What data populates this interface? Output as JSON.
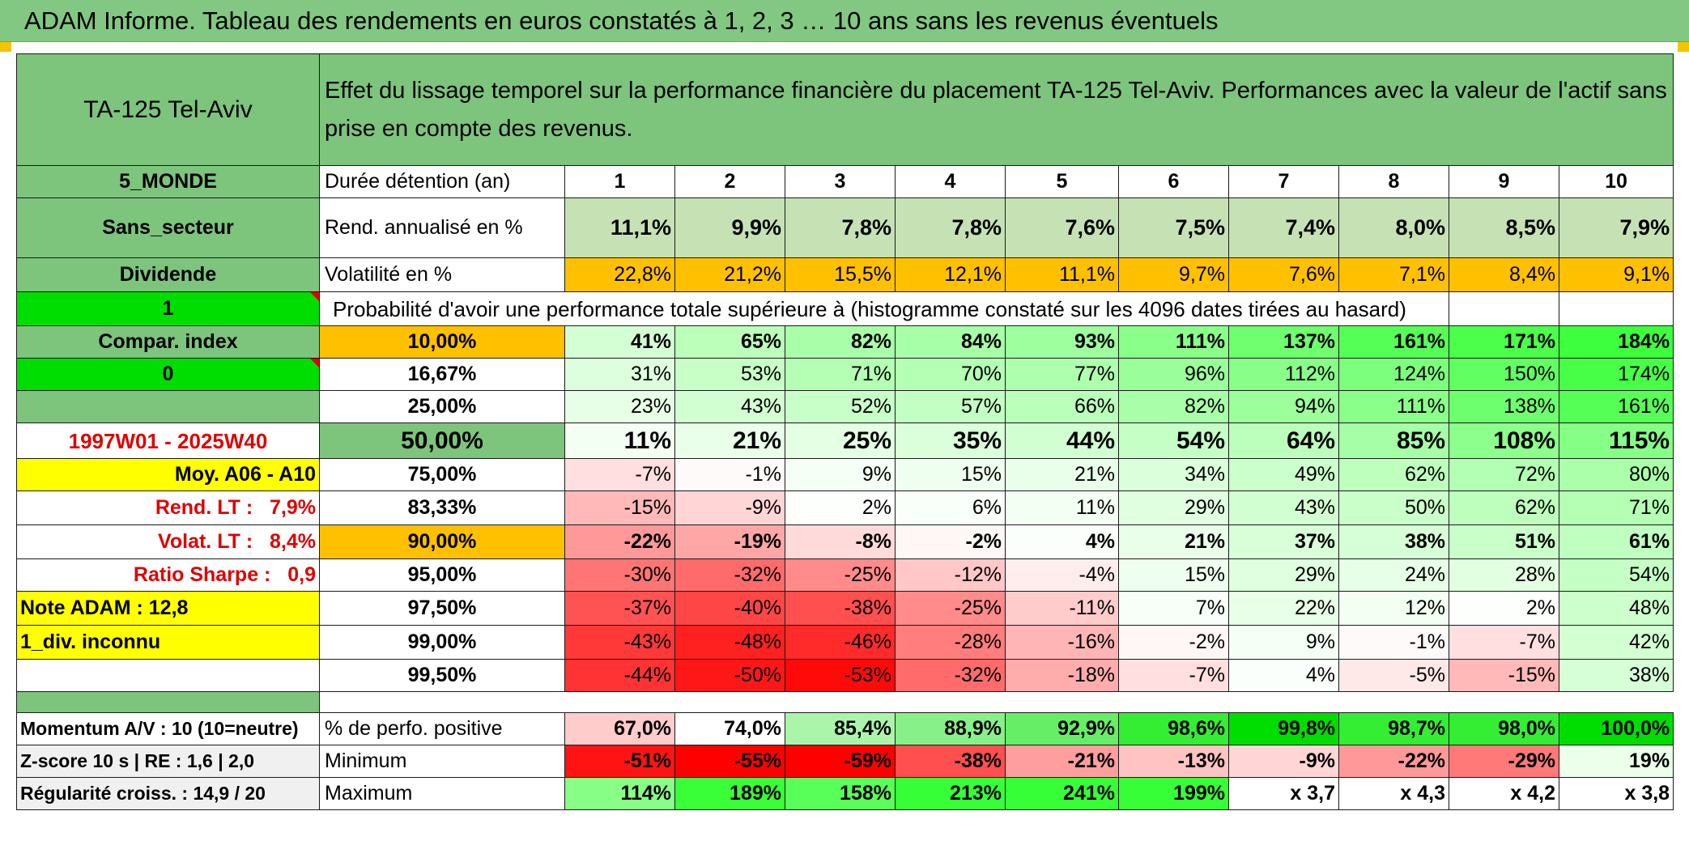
{
  "title": "ADAM Informe. Tableau des rendements en euros constatés à 1, 2, 3 … 10 ans sans les revenus éventuels",
  "header": {
    "asset": "TA-125 Tel-Aviv",
    "description": "Effet du lissage temporel sur la performance financière du placement TA-125 Tel-Aviv. Performances avec la valeur de l'actif sans prise en compte des revenus."
  },
  "left": {
    "zone": "5_MONDE",
    "secteur": "Sans_secteur",
    "dividende": "Dividende",
    "flag1": "1",
    "compar": "Compar. index",
    "flag0": "0",
    "period": "1997W01 - 2025W40",
    "moy": "Moy. A06 - A10",
    "rend_lt_label": "Rend. LT :",
    "rend_lt_value": "7,9%",
    "volat_lt_label": "Volat. LT :",
    "volat_lt_value": "8,4%",
    "sharpe_label": "Ratio Sharpe :",
    "sharpe_value": "0,9",
    "note": "Note ADAM : 12,8",
    "div": "1_div. inconnu",
    "momentum": "Momentum A/V : 10 (10=neutre)",
    "zscore": "Z-score 10 s | RE : 1,6 | 2,0",
    "regularite": "Régularité croiss. : 14,9 / 20"
  },
  "rows": {
    "duree_label": "Durée détention (an)",
    "durations": [
      "1",
      "2",
      "3",
      "4",
      "5",
      "6",
      "7",
      "8",
      "9",
      "10"
    ],
    "rend_label": "Rend. annualisé en %",
    "rend": [
      "11,1%",
      "9,9%",
      "7,8%",
      "7,8%",
      "7,6%",
      "7,5%",
      "7,4%",
      "8,0%",
      "8,5%",
      "7,9%"
    ],
    "vol_label": "Volatilité en %",
    "vol": [
      "22,8%",
      "21,2%",
      "15,5%",
      "12,1%",
      "11,1%",
      "9,7%",
      "7,6%",
      "7,1%",
      "8,4%",
      "9,1%"
    ],
    "prob_title": "Probabilité d'avoir une performance totale supérieure à (histogramme constaté sur les 4096 dates tirées au hasard)",
    "pos_label": "% de perfo. positive",
    "pos": [
      "67,0%",
      "74,0%",
      "85,4%",
      "88,9%",
      "92,9%",
      "98,6%",
      "99,8%",
      "98,7%",
      "98,0%",
      "100,0%"
    ],
    "min_label": "Minimum",
    "min": [
      "-51%",
      "-55%",
      "-59%",
      "-38%",
      "-21%",
      "-13%",
      "-9%",
      "-22%",
      "-29%",
      "19%"
    ],
    "max_label": "Maximum",
    "max": [
      "114%",
      "189%",
      "158%",
      "213%",
      "241%",
      "199%",
      "x 3,7",
      "x 4,3",
      "x 4,2",
      "x 3,8"
    ]
  },
  "probabilities": [
    {
      "p": "10,00%",
      "v": [
        "41%",
        "65%",
        "82%",
        "84%",
        "93%",
        "111%",
        "137%",
        "161%",
        "171%",
        "184%"
      ]
    },
    {
      "p": "16,67%",
      "v": [
        "31%",
        "53%",
        "71%",
        "70%",
        "77%",
        "96%",
        "112%",
        "124%",
        "150%",
        "174%"
      ]
    },
    {
      "p": "25,00%",
      "v": [
        "23%",
        "43%",
        "52%",
        "57%",
        "66%",
        "82%",
        "94%",
        "111%",
        "138%",
        "161%"
      ]
    },
    {
      "p": "50,00%",
      "v": [
        "11%",
        "21%",
        "25%",
        "35%",
        "44%",
        "54%",
        "64%",
        "85%",
        "108%",
        "115%"
      ]
    },
    {
      "p": "75,00%",
      "v": [
        "-7%",
        "-1%",
        "9%",
        "15%",
        "21%",
        "34%",
        "49%",
        "62%",
        "72%",
        "80%"
      ]
    },
    {
      "p": "83,33%",
      "v": [
        "-15%",
        "-9%",
        "2%",
        "6%",
        "11%",
        "29%",
        "43%",
        "50%",
        "62%",
        "71%"
      ]
    },
    {
      "p": "90,00%",
      "v": [
        "-22%",
        "-19%",
        "-8%",
        "-2%",
        "4%",
        "21%",
        "37%",
        "38%",
        "51%",
        "61%"
      ]
    },
    {
      "p": "95,00%",
      "v": [
        "-30%",
        "-32%",
        "-25%",
        "-12%",
        "-4%",
        "15%",
        "29%",
        "24%",
        "28%",
        "54%"
      ]
    },
    {
      "p": "97,50%",
      "v": [
        "-37%",
        "-40%",
        "-38%",
        "-25%",
        "-11%",
        "7%",
        "22%",
        "12%",
        "2%",
        "48%"
      ]
    },
    {
      "p": "99,00%",
      "v": [
        "-43%",
        "-48%",
        "-46%",
        "-28%",
        "-16%",
        "-2%",
        "9%",
        "-1%",
        "-7%",
        "42%"
      ]
    },
    {
      "p": "99,50%",
      "v": [
        "-44%",
        "-50%",
        "-53%",
        "-32%",
        "-18%",
        "-7%",
        "4%",
        "-5%",
        "-15%",
        "38%"
      ]
    }
  ],
  "colors": {
    "header_green": "#7dc47d",
    "bright_green": "#00dd00",
    "orange": "#ffc000",
    "yellow": "#ffff00",
    "label_red": "#e00000"
  }
}
